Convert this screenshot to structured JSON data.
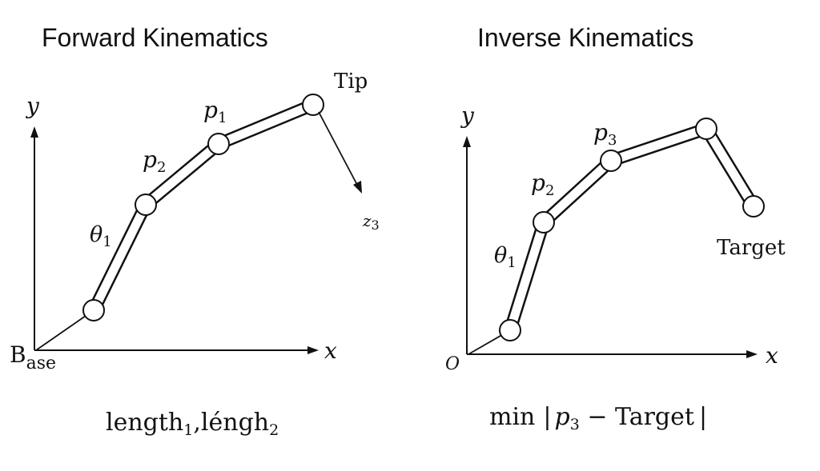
{
  "forward": {
    "title": "Forward Kinematics",
    "y_label": "y",
    "x_label": "x",
    "base_label_main": "B",
    "base_label_sub": "ase",
    "tip_label": "Tip",
    "p1_main": "p",
    "p1_sub": "1",
    "p2_main": "p",
    "p2_sub": "2",
    "theta_main": "θ",
    "theta_sub": "1",
    "arrow_label_main": "z",
    "arrow_label_sub": "3",
    "formula": {
      "part1": "length",
      "part1_sub": "1",
      "comma": ",",
      "part2": "léngh",
      "part2_sub": "2"
    }
  },
  "inverse": {
    "title": "Inverse Kinematics",
    "y_label": "y",
    "x_label": "x",
    "origin_label": "O",
    "p2_main": "p",
    "p2_sub": "2",
    "p3_main": "p",
    "p3_sub": "3",
    "theta_main": "θ",
    "theta_sub": "1",
    "target_label": "Target",
    "formula": {
      "min": "min",
      "bar_left": "|",
      "p": "p",
      "p_sub": "3",
      "minus": " − ",
      "target": "Target",
      "bar_right": "|"
    }
  }
}
